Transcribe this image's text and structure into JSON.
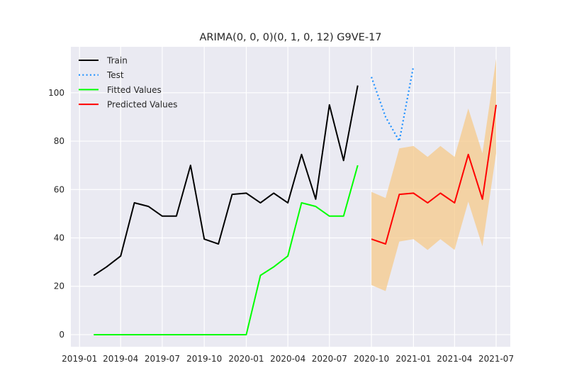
{
  "chart_data": {
    "type": "line",
    "title": "ARIMA(0, 0, 0)(0, 1, 0, 12) G9VE-17",
    "xlabel": "",
    "ylabel": "",
    "x_ticks": [
      "2019-01",
      "2019-04",
      "2019-07",
      "2019-10",
      "2020-01",
      "2020-04",
      "2020-07",
      "2020-10",
      "2021-01",
      "2021-04",
      "2021-07"
    ],
    "y_ticks": [
      0,
      20,
      40,
      60,
      80,
      100
    ],
    "ylim": [
      -5,
      119
    ],
    "xlim": [
      "2018-12-13",
      "2021-08-01"
    ],
    "grid": true,
    "legend_position": "top-left",
    "series": [
      {
        "name": "Train",
        "color": "#000000",
        "style": "solid",
        "x": [
          "2019-02-01",
          "2019-03-01",
          "2019-04-01",
          "2019-05-01",
          "2019-06-01",
          "2019-07-01",
          "2019-08-01",
          "2019-09-01",
          "2019-10-01",
          "2019-11-01",
          "2019-12-01",
          "2020-01-01",
          "2020-02-01",
          "2020-03-01",
          "2020-04-01",
          "2020-05-01",
          "2020-06-01",
          "2020-07-01",
          "2020-08-01",
          "2020-09-01"
        ],
        "values": [
          24.5,
          28,
          32.5,
          54.5,
          53,
          49,
          49,
          70,
          39.5,
          37.5,
          58,
          58.5,
          54.5,
          58.5,
          54.5,
          74.5,
          56,
          95,
          72,
          103
        ]
      },
      {
        "name": "Test",
        "color": "#1e90ff",
        "style": "dotted",
        "x": [
          "2020-10-01",
          "2020-11-01",
          "2020-12-01",
          "2021-01-01"
        ],
        "values": [
          106.5,
          90,
          80,
          111
        ]
      },
      {
        "name": "Fitted Values",
        "color": "#00ff00",
        "style": "solid",
        "x": [
          "2019-02-01",
          "2019-03-01",
          "2019-04-01",
          "2019-05-01",
          "2019-06-01",
          "2019-07-01",
          "2019-08-01",
          "2019-09-01",
          "2019-10-01",
          "2019-11-01",
          "2019-12-01",
          "2020-01-01",
          "2020-02-01",
          "2020-03-01",
          "2020-04-01",
          "2020-05-01",
          "2020-06-01",
          "2020-07-01",
          "2020-08-01",
          "2020-09-01"
        ],
        "values": [
          0,
          0,
          0,
          0,
          0,
          0,
          0,
          0,
          0,
          0,
          0,
          0,
          24.5,
          28,
          32.5,
          54.5,
          53,
          49,
          49,
          70
        ]
      },
      {
        "name": "Predicted Values",
        "color": "#ff0000",
        "style": "solid",
        "x": [
          "2020-10-01",
          "2020-11-01",
          "2020-12-01",
          "2021-01-01",
          "2021-02-01",
          "2021-03-01",
          "2021-04-01",
          "2021-05-01",
          "2021-06-01",
          "2021-07-01"
        ],
        "values": [
          39.5,
          37.5,
          58,
          58.5,
          54.5,
          58.5,
          54.5,
          74.5,
          56,
          95
        ]
      }
    ],
    "confidence_band": {
      "color": "#f5c98a",
      "x": [
        "2020-10-01",
        "2020-11-01",
        "2020-12-01",
        "2021-01-01",
        "2021-02-01",
        "2021-03-01",
        "2021-04-01",
        "2021-05-01",
        "2021-06-01",
        "2021-07-01"
      ],
      "lower": [
        20.5,
        18,
        38.5,
        39.5,
        35,
        39.5,
        35,
        55,
        36.5,
        75
      ],
      "upper": [
        59,
        56.5,
        77,
        78,
        73.5,
        78,
        73.5,
        93.5,
        75,
        114
      ]
    }
  }
}
